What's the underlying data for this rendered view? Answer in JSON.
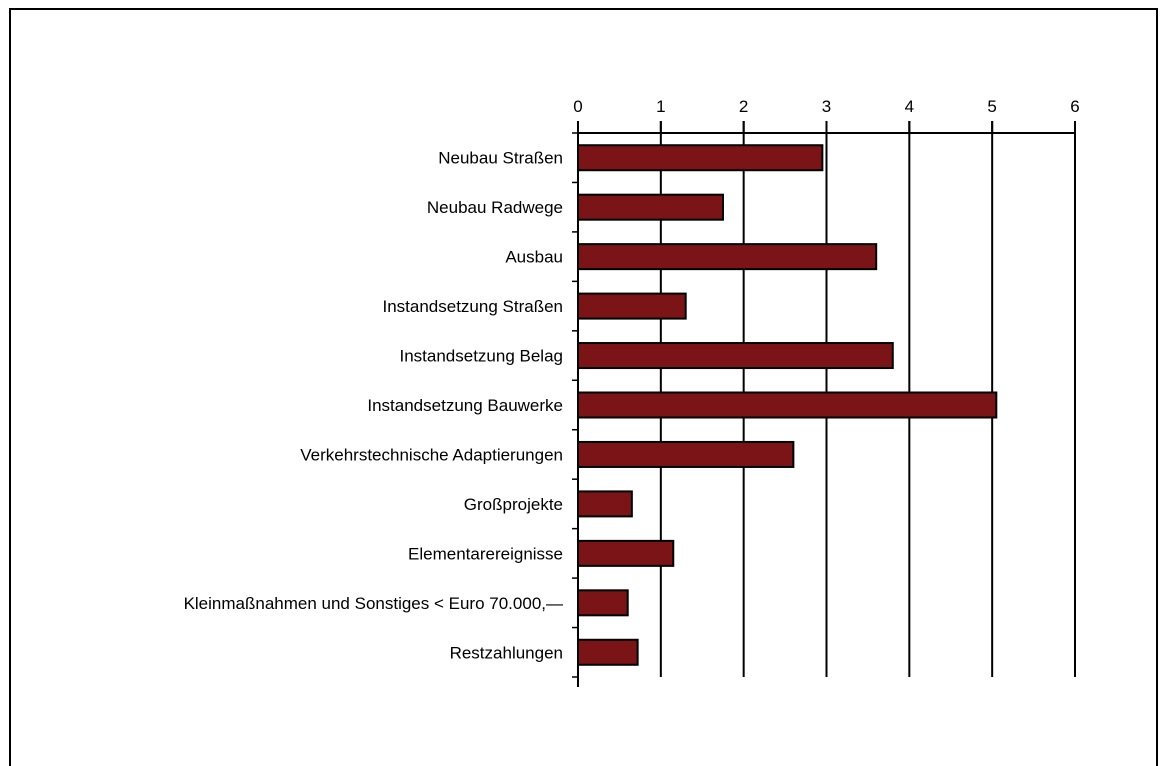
{
  "chart_data": {
    "type": "bar",
    "orientation": "horizontal",
    "title": "",
    "xlabel": "",
    "ylabel": "",
    "xlim": [
      0,
      6
    ],
    "x_ticks": [
      "0",
      "1",
      "2",
      "3",
      "4",
      "5",
      "6"
    ],
    "grid": true,
    "legend": "none",
    "bar_color": "#7b1416",
    "categories": [
      "Neubau Straßen",
      "Neubau Radwege",
      "Ausbau",
      "Instandsetzung Straßen",
      "Instandsetzung Belag",
      "Instandsetzung Bauwerke",
      "Verkehrstechnische Adaptierungen",
      "Großprojekte",
      "Elementarereignisse",
      "Kleinmaßnahmen und Sonstiges < Euro 70.000,—",
      "Restzahlungen"
    ],
    "values": [
      2.95,
      1.75,
      3.6,
      1.3,
      3.8,
      5.05,
      2.6,
      0.65,
      1.15,
      0.6,
      0.72
    ]
  }
}
